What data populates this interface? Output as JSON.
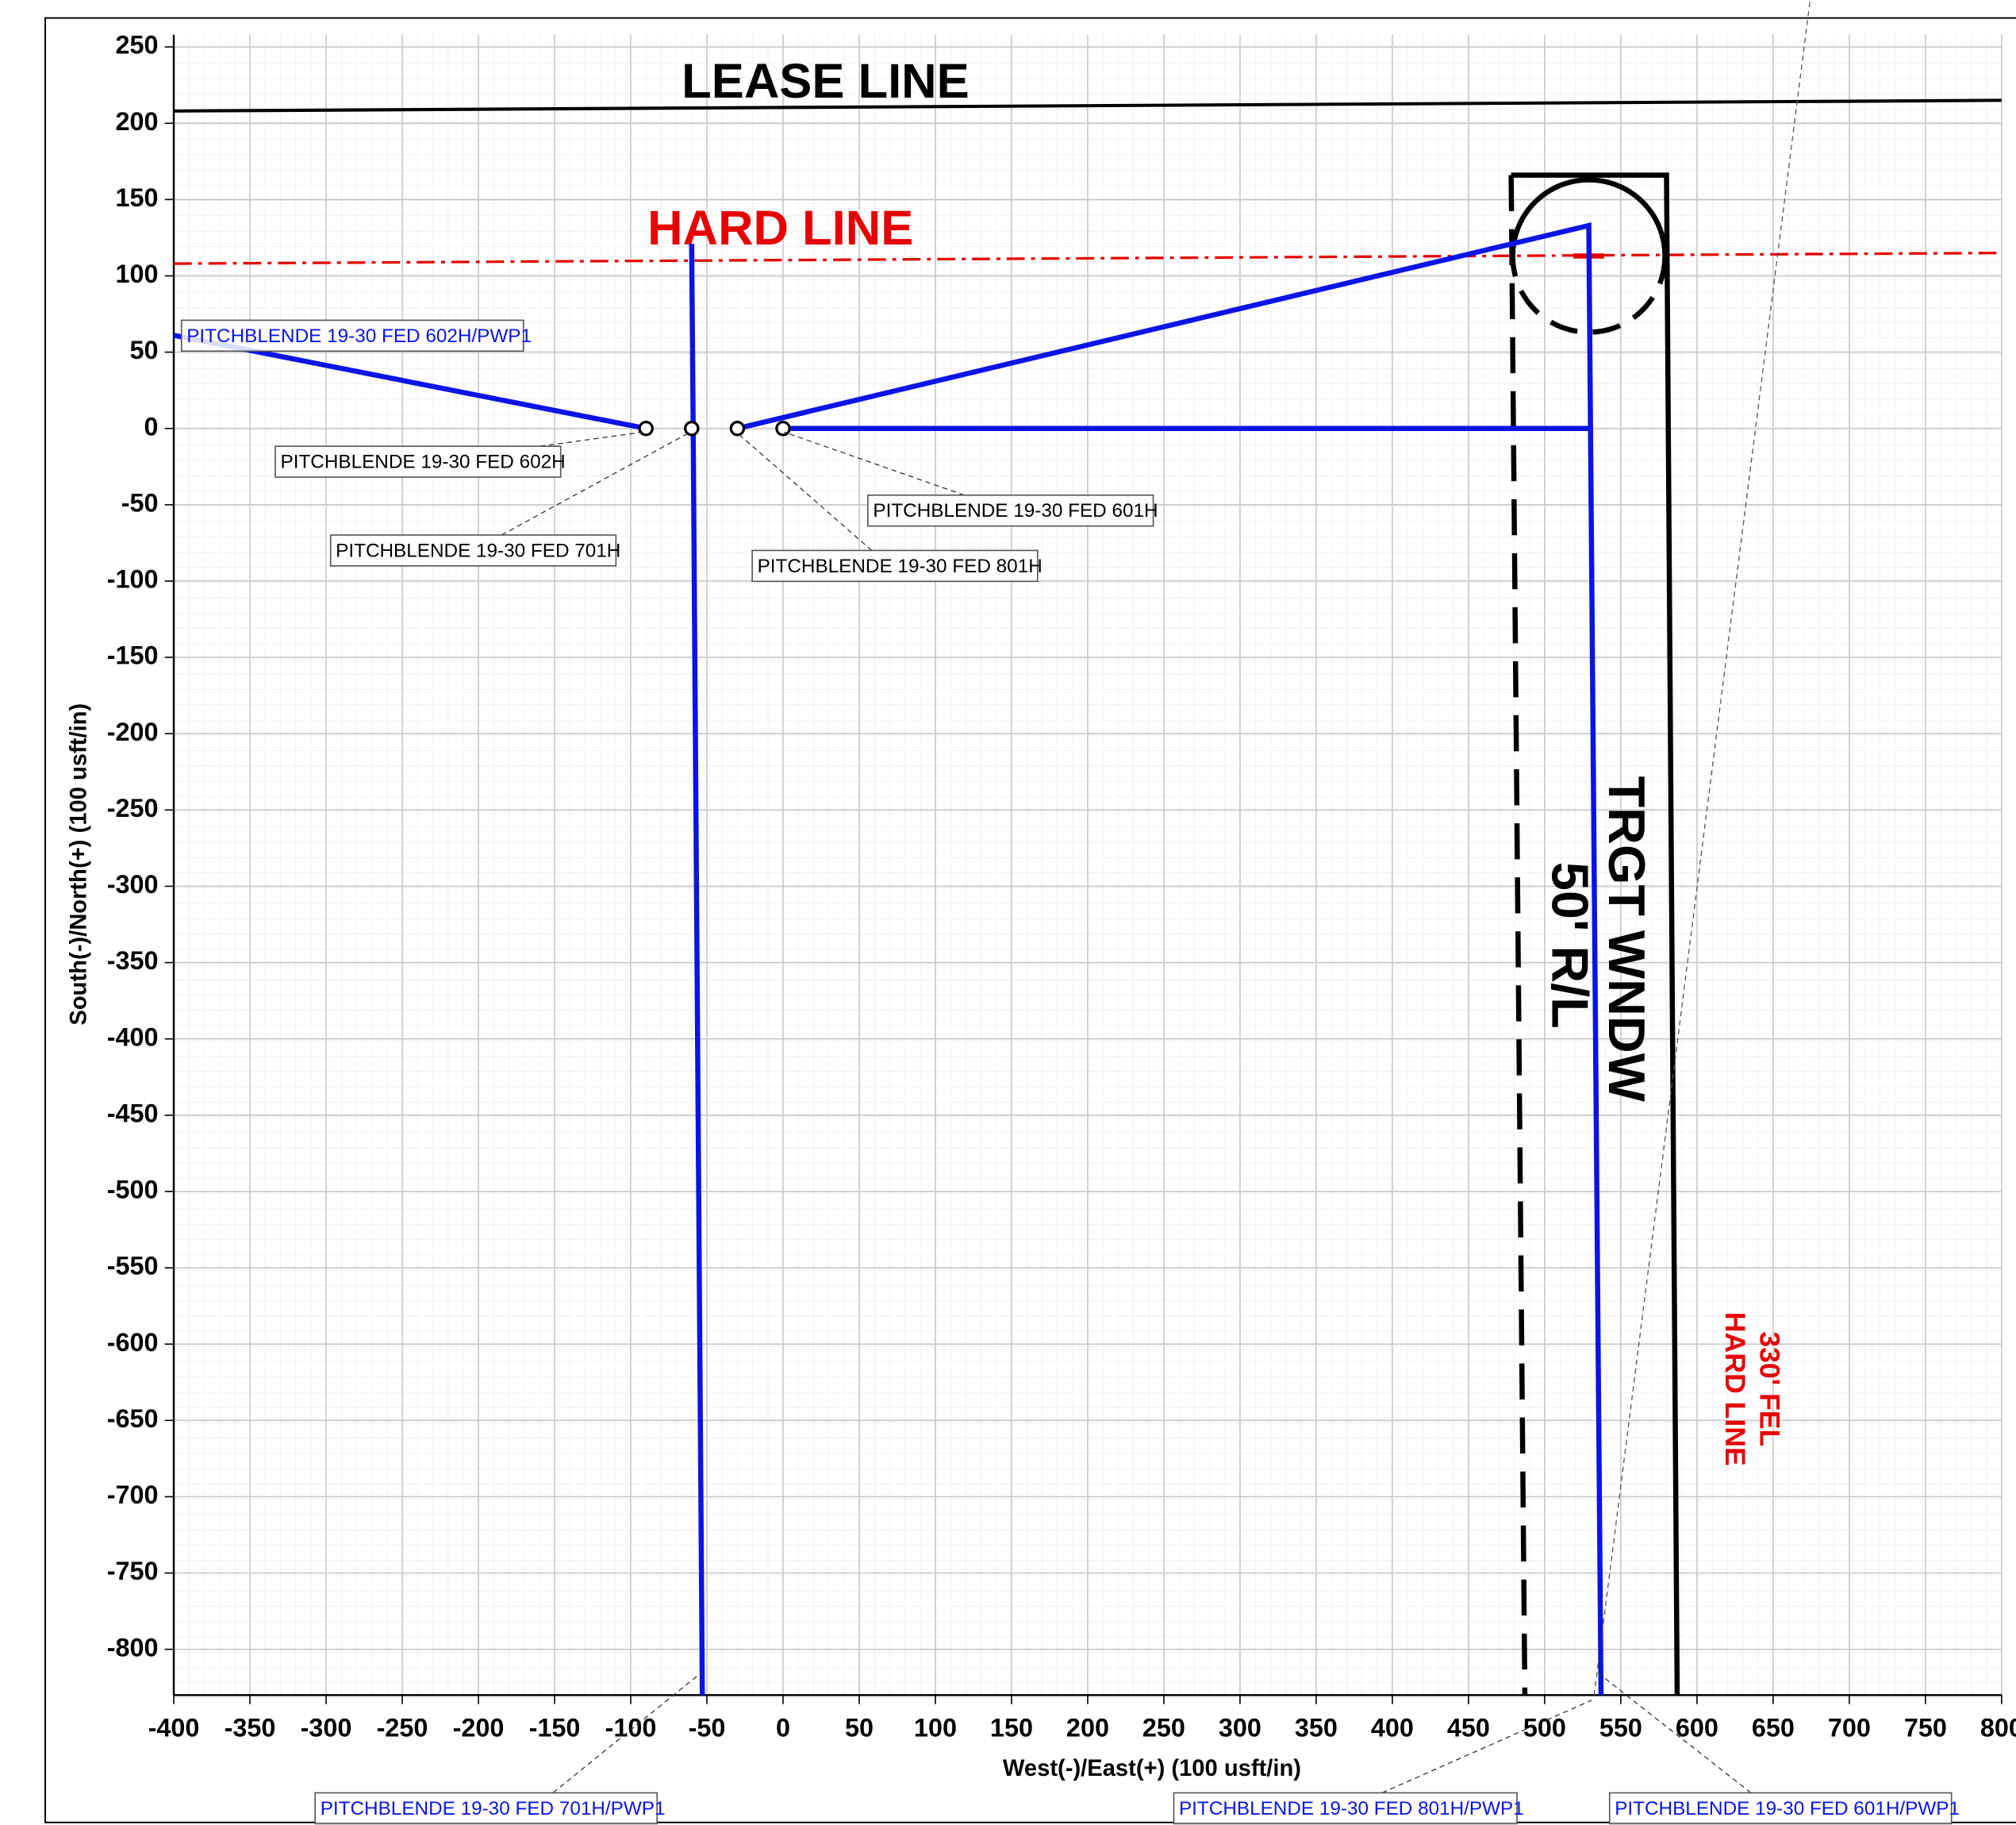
{
  "chart_data": {
    "type": "line",
    "x_label": "West(-)/East(+) (100 usft/in)",
    "y_label": "South(-)/North(+) (100 usft/in)",
    "xlim": [
      -400,
      800
    ],
    "ylim": [
      -830,
      258
    ],
    "xticks": [
      -400,
      -350,
      -300,
      -250,
      -200,
      -150,
      -100,
      -50,
      0,
      50,
      100,
      150,
      200,
      250,
      300,
      350,
      400,
      450,
      500,
      550,
      600,
      650,
      700,
      750,
      800
    ],
    "yticks": [
      -800,
      -750,
      -700,
      -650,
      -600,
      -550,
      -500,
      -450,
      -400,
      -350,
      -300,
      -250,
      -200,
      -150,
      -100,
      -50,
      0,
      50,
      100,
      150,
      200,
      250
    ],
    "grid": true,
    "series": [
      {
        "name": "PITCHBLENDE 19-30 FED 602H/PWP1",
        "color": "#0a14e6",
        "x": [
          -90,
          -400
        ],
        "values": [
          0,
          61
        ]
      },
      {
        "name": "PITCHBLENDE 19-30 FED 701H/PWP1",
        "color": "#0a14e6",
        "x": [
          -60,
          -59,
          -53
        ],
        "values": [
          121,
          0,
          -830
        ]
      },
      {
        "name": "PITCHBLENDE 19-30 FED 801H/PWP1",
        "color": "#0a14e6",
        "x": [
          -30,
          529,
          537
        ],
        "values": [
          0,
          133,
          -830
        ]
      },
      {
        "name": "PITCHBLENDE 19-30 FED 601H/PWP1",
        "color": "#0a14e6",
        "x": [
          0,
          529
        ],
        "values": [
          0,
          0
        ]
      }
    ],
    "surface_locations": [
      {
        "name": "PITCHBLENDE 19-30 FED 602H",
        "x": -90,
        "y": 0
      },
      {
        "name": "PITCHBLENDE 19-30 FED 701H",
        "x": -60,
        "y": 0
      },
      {
        "name": "PITCHBLENDE 19-30 FED 801H",
        "x": -30,
        "y": 0
      },
      {
        "name": "PITCHBLENDE 19-30 FED 601H",
        "x": 0,
        "y": 0
      }
    ],
    "boundaries": [
      {
        "text": "LEASE LINE",
        "color": "#000000",
        "x": [
          -400,
          800
        ],
        "values": [
          208,
          215
        ]
      },
      {
        "text": "HARD LINE",
        "color": "#e60000",
        "x": [
          -400,
          800
        ],
        "values": [
          108,
          115
        ]
      },
      {
        "text": "TRGT WNDW",
        "color": "#000000",
        "x": [
          478,
          580,
          587
        ],
        "values": [
          166,
          166,
          -830
        ]
      },
      {
        "text": "50' R/L",
        "color": "#000000",
        "x": [
          478,
          487
        ],
        "values": [
          166,
          -830
        ]
      }
    ],
    "target_circle": {
      "x": 529,
      "y": 113,
      "r": 50
    },
    "annotations": [
      {
        "text": "330' FEL",
        "color": "#e60000"
      },
      {
        "text": "HARD LINE",
        "color": "#e60000"
      }
    ]
  }
}
